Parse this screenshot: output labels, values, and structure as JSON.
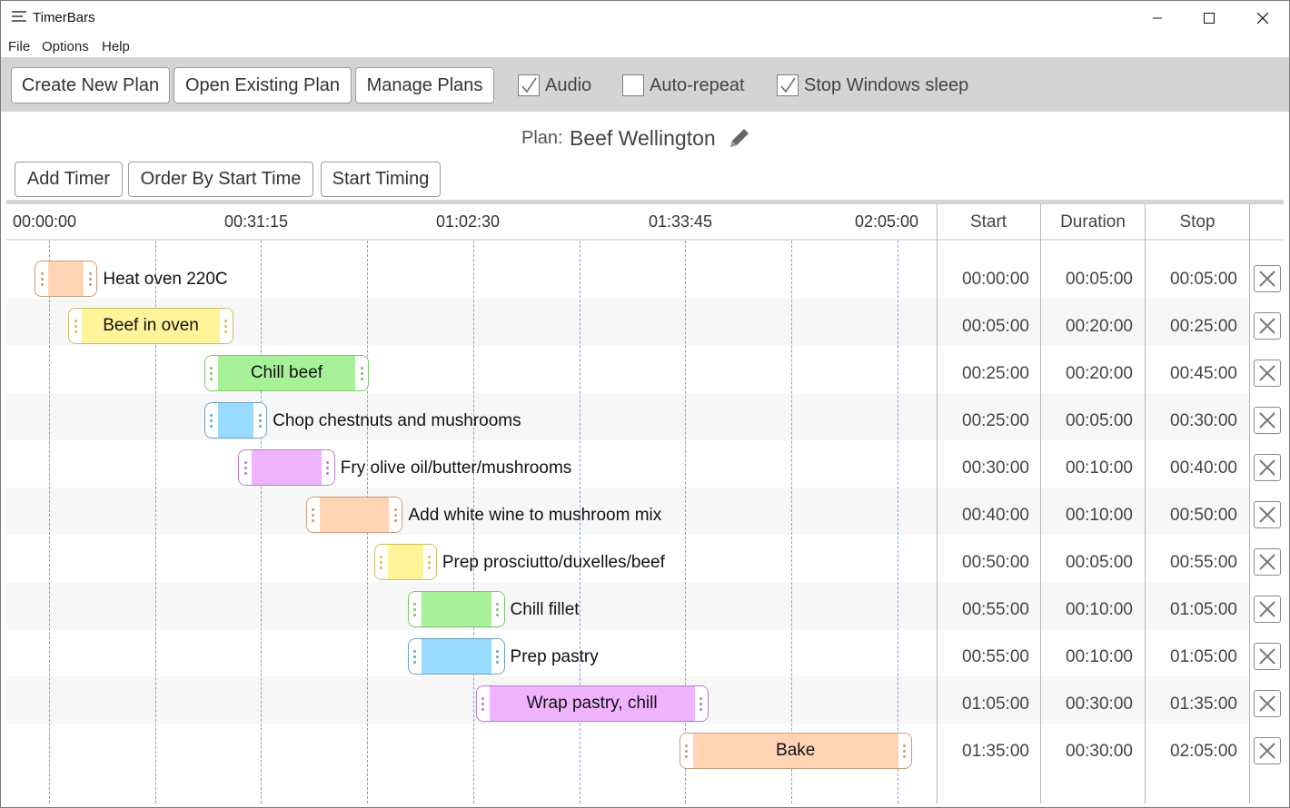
{
  "window": {
    "title": "TimerBars",
    "minimize": "minimize-icon",
    "maximize": "maximize-icon",
    "close": "close-icon"
  },
  "menu": [
    "File",
    "Options",
    "Help"
  ],
  "toolbar": {
    "create": "Create New Plan",
    "open": "Open Existing Plan",
    "manage": "Manage Plans",
    "audio": {
      "label": "Audio",
      "checked": true
    },
    "autorepeat": {
      "label": "Auto-repeat",
      "checked": false
    },
    "sleep": {
      "label": "Stop Windows sleep",
      "checked": true
    }
  },
  "plan": {
    "label": "Plan:",
    "name": "Beef Wellington",
    "edit_icon": "pencil-icon",
    "add_timer": "Add Timer",
    "order": "Order By Start Time",
    "start": "Start Timing"
  },
  "timeline": {
    "ticks": [
      "00:00:00",
      "00:31:15",
      "01:02:30",
      "01:33:45",
      "02:05:00"
    ],
    "total_minutes": 125
  },
  "columns": {
    "start": "Start",
    "duration": "Duration",
    "stop": "Stop"
  },
  "colors": {
    "orange": {
      "fill": "#ffd4b5",
      "border": "#c69c78",
      "dot": "#c69c78"
    },
    "yellow": {
      "fill": "#fff499",
      "border": "#c9bf61",
      "dot": "#c9bf61"
    },
    "green": {
      "fill": "#a7f299",
      "border": "#7ec274",
      "dot": "#7ec274"
    },
    "blue": {
      "fill": "#99daff",
      "border": "#6aa2c4",
      "dot": "#6aa2c4"
    },
    "purple": {
      "fill": "#efb3ff",
      "border": "#b57ec4",
      "dot": "#b57ec4"
    }
  },
  "timers": [
    {
      "name": "Heat oven 220C",
      "start": "00:00:00",
      "duration": "00:05:00",
      "stop": "00:05:00",
      "color": "orange",
      "label_inside": false
    },
    {
      "name": "Beef in oven",
      "start": "00:05:00",
      "duration": "00:20:00",
      "stop": "00:25:00",
      "color": "yellow",
      "label_inside": true
    },
    {
      "name": "Chill beef",
      "start": "00:25:00",
      "duration": "00:20:00",
      "stop": "00:45:00",
      "color": "green",
      "label_inside": true
    },
    {
      "name": "Chop chestnuts and mushrooms",
      "start": "00:25:00",
      "duration": "00:05:00",
      "stop": "00:30:00",
      "color": "blue",
      "label_inside": false
    },
    {
      "name": "Fry olive oil/butter/mushrooms",
      "start": "00:30:00",
      "duration": "00:10:00",
      "stop": "00:40:00",
      "color": "purple",
      "label_inside": false
    },
    {
      "name": "Add white wine to mushroom mix",
      "start": "00:40:00",
      "duration": "00:10:00",
      "stop": "00:50:00",
      "color": "orange",
      "label_inside": false
    },
    {
      "name": "Prep prosciutto/duxelles/beef",
      "start": "00:50:00",
      "duration": "00:05:00",
      "stop": "00:55:00",
      "color": "yellow",
      "label_inside": false
    },
    {
      "name": "Chill fillet",
      "start": "00:55:00",
      "duration": "00:10:00",
      "stop": "01:05:00",
      "color": "green",
      "label_inside": false
    },
    {
      "name": "Prep pastry",
      "start": "00:55:00",
      "duration": "00:10:00",
      "stop": "01:05:00",
      "color": "blue",
      "label_inside": false
    },
    {
      "name": "Wrap pastry, chill",
      "start": "01:05:00",
      "duration": "00:30:00",
      "stop": "01:35:00",
      "color": "purple",
      "label_inside": true
    },
    {
      "name": "Bake",
      "start": "01:35:00",
      "duration": "00:30:00",
      "stop": "02:05:00",
      "color": "orange",
      "label_inside": true
    }
  ],
  "delete_icon": "close-x-icon"
}
